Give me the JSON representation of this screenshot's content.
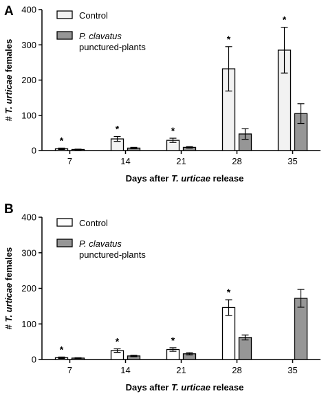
{
  "chart_data": [
    {
      "panel": "A",
      "type": "bar",
      "categories": [
        "7",
        "14",
        "21",
        "28",
        "35"
      ],
      "ylim": [
        0,
        400
      ],
      "yticks": [
        "0",
        "100",
        "200",
        "300",
        "400"
      ],
      "xlabel_parts": [
        "Days after ",
        "T. urticae",
        " release"
      ],
      "ylabel_parts": [
        "# ",
        "T. urticae",
        " females"
      ],
      "legend_placement": "top-left",
      "series": [
        {
          "name": "Control",
          "name_lines": [
            "Control"
          ],
          "color": "#f2f2f2",
          "values": [
            5,
            33,
            29,
            232,
            285
          ],
          "errors": [
            2,
            7,
            6,
            63,
            65
          ],
          "significance": [
            "*",
            "*",
            "*",
            "*",
            "*"
          ]
        },
        {
          "name": "P. clavatus punctured-plants",
          "name_lines": [
            "P. clavatus",
            "punctured-plants"
          ],
          "color": "#969696",
          "values": [
            3,
            7,
            9,
            47,
            105
          ],
          "errors": [
            1,
            2,
            2,
            15,
            28
          ],
          "significance": [
            "",
            "",
            "",
            "",
            ""
          ]
        }
      ]
    },
    {
      "panel": "B",
      "type": "bar",
      "categories": [
        "7",
        "14",
        "21",
        "28",
        "35"
      ],
      "ylim": [
        0,
        400
      ],
      "yticks": [
        "0",
        "100",
        "200",
        "300",
        "400"
      ],
      "xlabel_parts": [
        "Days after ",
        "T. urticae",
        " release"
      ],
      "ylabel_parts": [
        "# ",
        "T. urticae",
        " females"
      ],
      "legend_placement": "top-left",
      "series": [
        {
          "name": "Control",
          "name_lines": [
            "Control"
          ],
          "color": "#ffffff",
          "values": [
            5,
            25,
            28,
            146,
            0
          ],
          "errors": [
            2,
            5,
            5,
            22,
            0
          ],
          "significance": [
            "*",
            "*",
            "*",
            "*",
            ""
          ]
        },
        {
          "name": "P. clavatus punctured-plants",
          "name_lines": [
            "P. clavatus",
            "punctured-plants"
          ],
          "color": "#969696",
          "values": [
            4,
            10,
            16,
            62,
            172
          ],
          "errors": [
            1,
            2,
            3,
            7,
            25
          ],
          "significance": [
            "",
            "",
            "",
            "",
            ""
          ]
        }
      ]
    }
  ]
}
